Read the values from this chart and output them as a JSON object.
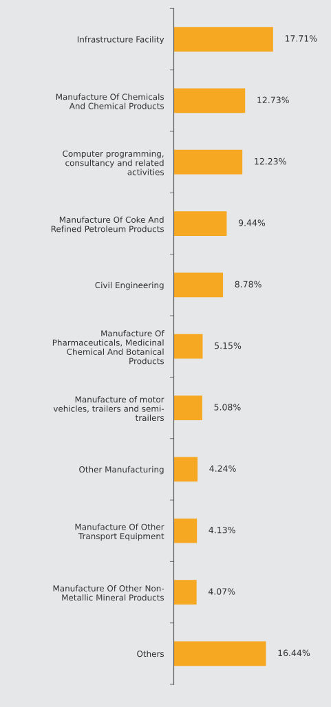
{
  "chart_data": {
    "type": "bar",
    "orientation": "horizontal",
    "data_labels": true,
    "grid": false,
    "legend": false,
    "tick_labels": "y",
    "categories": [
      "Infrastructure Facility",
      "Manufacture Of Chemicals\nAnd Chemical Products",
      "Computer programming,\nconsultancy and related\nactivities",
      "Manufacture Of Coke And\nRefined Petroleum Products",
      "Civil Engineering",
      "Manufacture Of\nPharmaceuticals, Medicinal\nChemical And Botanical\nProducts",
      "Manufacture of motor\nvehicles, trailers and semi-\ntrailers",
      "Other Manufacturing",
      "Manufacture Of Other\nTransport Equipment",
      "Manufacture Of Other Non-\nMetallic Mineral Products",
      "Others"
    ],
    "values": [
      17.71,
      12.73,
      12.23,
      9.44,
      8.78,
      5.15,
      5.08,
      4.24,
      4.13,
      4.07,
      16.44
    ],
    "value_labels": [
      "17.71%",
      "12.73%",
      "12.23%",
      "9.44%",
      "8.78%",
      "5.15%",
      "5.08%",
      "4.24%",
      "4.13%",
      "4.07%",
      "16.44%"
    ],
    "color": "#f7a823"
  }
}
